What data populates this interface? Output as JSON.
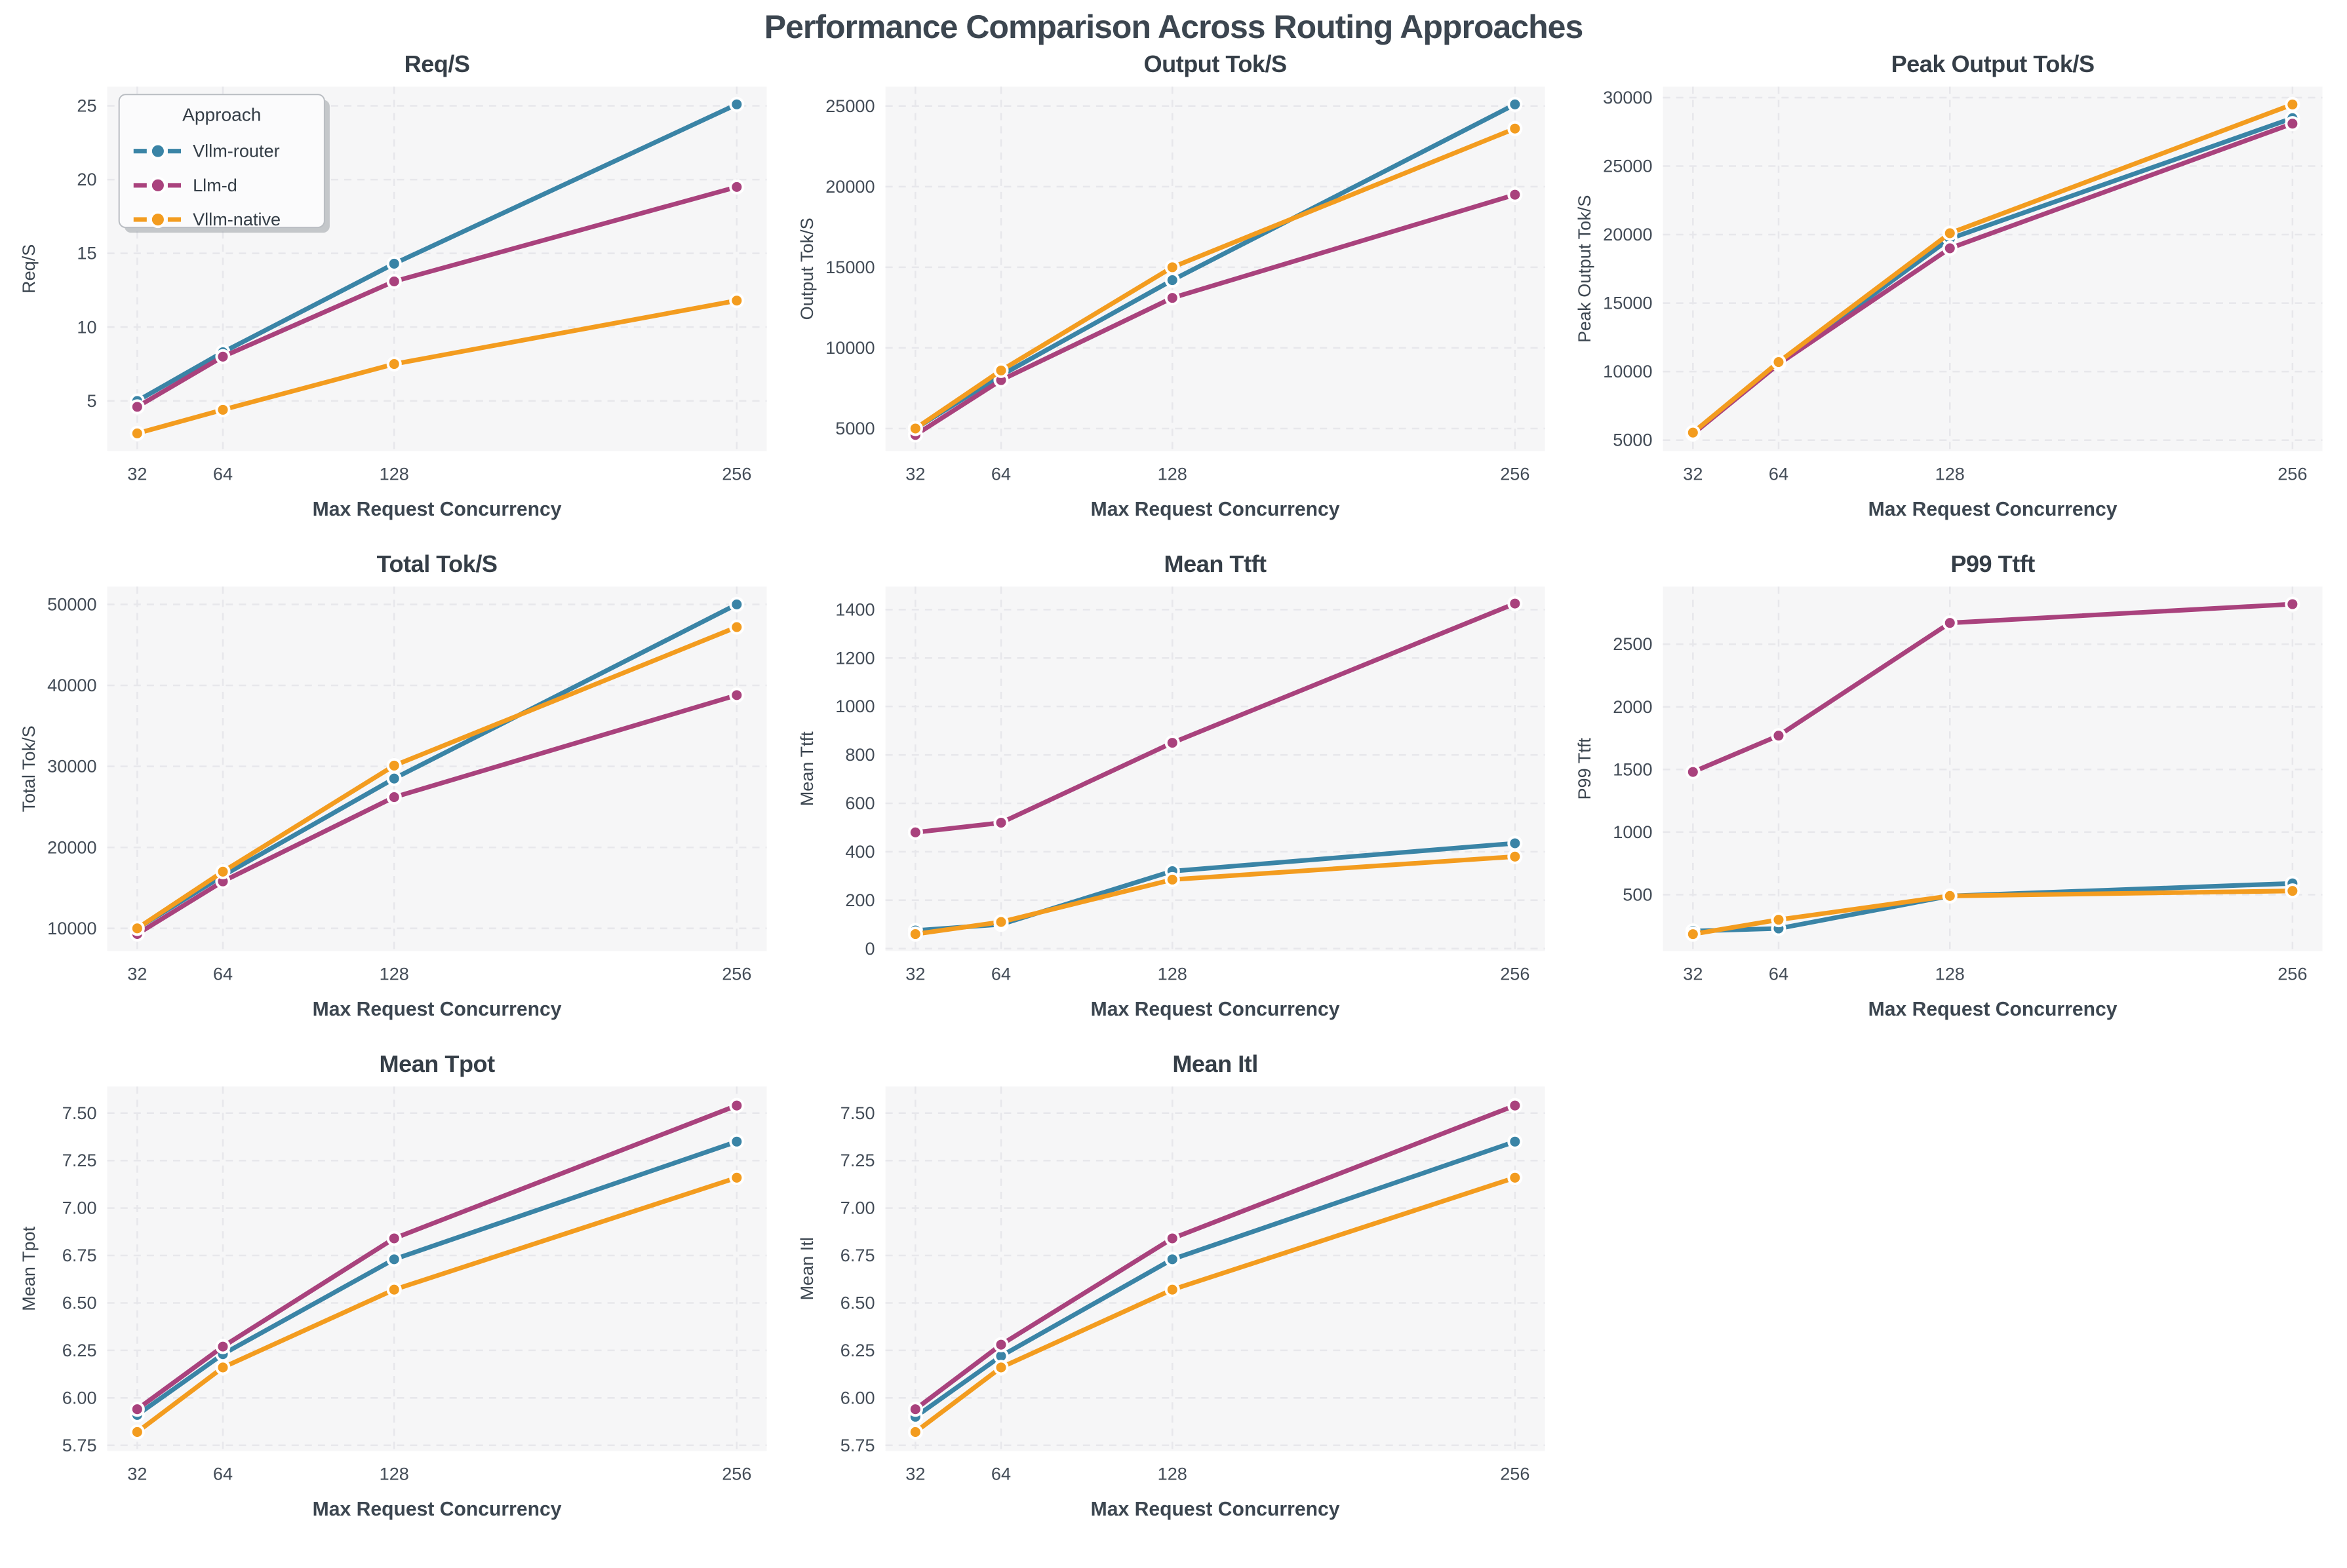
{
  "page_title": "Performance Comparison Across Routing Approaches",
  "legend": {
    "title": "Approach",
    "entries": [
      {
        "label": "Vllm-router",
        "color": "#3a84a6"
      },
      {
        "label": "Llm-d",
        "color": "#a9427d"
      },
      {
        "label": "Vllm-native",
        "color": "#f39c1f"
      }
    ]
  },
  "x_axis": {
    "label": "Max Request Concurrency",
    "tick_values": [
      32,
      64,
      128,
      256
    ],
    "tick_labels": [
      "32",
      "64",
      "128",
      "256"
    ],
    "xlim": [
      20.8,
      267.2
    ]
  },
  "style_colors": {
    "plot_bg": "#f6f6f7",
    "grid": "#e7e7eb",
    "title_text": "#353e47",
    "tick_text": "#434c57",
    "axis_label_text": "#3c4650",
    "marker_edge": "#ffffff",
    "legend_bg": "#fbfbfc",
    "legend_border": "#b9bdc2",
    "legend_shadow": "#9aa0a6"
  },
  "chart_data": [
    {
      "type": "line",
      "title": "Req/S",
      "ylabel": "Req/S",
      "show_legend": true,
      "ylim": [
        1.6,
        26.3
      ],
      "ytick_values": [
        5,
        10,
        15,
        20,
        25
      ],
      "ytick_labels": [
        "5",
        "10",
        "15",
        "20",
        "25"
      ],
      "x": [
        32,
        64,
        128,
        256
      ],
      "series": [
        {
          "name": "Vllm-router",
          "color": "#3a84a6",
          "values": [
            5.0,
            8.3,
            14.3,
            25.1
          ]
        },
        {
          "name": "Llm-d",
          "color": "#a9427d",
          "values": [
            4.6,
            8.0,
            13.1,
            19.5
          ]
        },
        {
          "name": "Vllm-native",
          "color": "#f39c1f",
          "values": [
            2.8,
            4.4,
            7.5,
            11.8
          ]
        }
      ]
    },
    {
      "type": "line",
      "title": "Output Tok/S",
      "ylabel": "Output Tok/S",
      "show_legend": false,
      "ylim": [
        3600,
        26200
      ],
      "ytick_values": [
        5000,
        10000,
        15000,
        20000,
        25000
      ],
      "ytick_labels": [
        "5000",
        "10000",
        "15000",
        "20000",
        "25000"
      ],
      "x": [
        32,
        64,
        128,
        256
      ],
      "series": [
        {
          "name": "Vllm-router",
          "color": "#3a84a6",
          "values": [
            5000,
            8300,
            14200,
            25100
          ]
        },
        {
          "name": "Llm-d",
          "color": "#a9427d",
          "values": [
            4600,
            8000,
            13100,
            19500
          ]
        },
        {
          "name": "Vllm-native",
          "color": "#f39c1f",
          "values": [
            5000,
            8600,
            15000,
            23600
          ]
        }
      ]
    },
    {
      "type": "line",
      "title": "Peak Output Tok/S",
      "ylabel": "Peak Output Tok/S",
      "show_legend": false,
      "ylim": [
        4200,
        30800
      ],
      "ytick_values": [
        5000,
        10000,
        15000,
        20000,
        25000,
        30000
      ],
      "ytick_labels": [
        "5000",
        "10000",
        "15000",
        "20000",
        "25000",
        "30000"
      ],
      "x": [
        32,
        64,
        128,
        256
      ],
      "series": [
        {
          "name": "Vllm-router",
          "color": "#3a84a6",
          "values": [
            5500,
            10600,
            19700,
            28500
          ]
        },
        {
          "name": "Llm-d",
          "color": "#a9427d",
          "values": [
            5450,
            10550,
            19000,
            28100
          ]
        },
        {
          "name": "Vllm-native",
          "color": "#f39c1f",
          "values": [
            5550,
            10700,
            20100,
            29500
          ]
        }
      ]
    },
    {
      "type": "line",
      "title": "Total Tok/S",
      "ylabel": "Total Tok/S",
      "show_legend": false,
      "ylim": [
        7200,
        52200
      ],
      "ytick_values": [
        10000,
        20000,
        30000,
        40000,
        50000
      ],
      "ytick_labels": [
        "10000",
        "20000",
        "30000",
        "40000",
        "50000"
      ],
      "x": [
        32,
        64,
        128,
        256
      ],
      "series": [
        {
          "name": "Vllm-router",
          "color": "#3a84a6",
          "values": [
            10000,
            16500,
            28500,
            50000
          ]
        },
        {
          "name": "Llm-d",
          "color": "#a9427d",
          "values": [
            9300,
            15800,
            26200,
            38800
          ]
        },
        {
          "name": "Vllm-native",
          "color": "#f39c1f",
          "values": [
            10000,
            17000,
            30100,
            47200
          ]
        }
      ]
    },
    {
      "type": "line",
      "title": "Mean Ttft",
      "ylabel": "Mean Ttft",
      "show_legend": false,
      "ylim": [
        -10,
        1495
      ],
      "ytick_values": [
        0,
        200,
        400,
        600,
        800,
        1000,
        1200,
        1400
      ],
      "ytick_labels": [
        "0",
        "200",
        "400",
        "600",
        "800",
        "1000",
        "1200",
        "1400"
      ],
      "x": [
        32,
        64,
        128,
        256
      ],
      "series": [
        {
          "name": "Vllm-router",
          "color": "#3a84a6",
          "values": [
            75,
            100,
            320,
            435
          ]
        },
        {
          "name": "Llm-d",
          "color": "#a9427d",
          "values": [
            480,
            520,
            850,
            1425
          ]
        },
        {
          "name": "Vllm-native",
          "color": "#f39c1f",
          "values": [
            60,
            110,
            285,
            380
          ]
        }
      ]
    },
    {
      "type": "line",
      "title": "P99 Ttft",
      "ylabel": "P99 Ttft",
      "show_legend": false,
      "ylim": [
        50,
        2960
      ],
      "ytick_values": [
        500,
        1000,
        1500,
        2000,
        2500
      ],
      "ytick_labels": [
        "500",
        "1000",
        "1500",
        "2000",
        "2500"
      ],
      "x": [
        32,
        64,
        128,
        256
      ],
      "series": [
        {
          "name": "Vllm-router",
          "color": "#3a84a6",
          "values": [
            210,
            230,
            490,
            590
          ]
        },
        {
          "name": "Llm-d",
          "color": "#a9427d",
          "values": [
            1480,
            1770,
            2670,
            2820
          ]
        },
        {
          "name": "Vllm-native",
          "color": "#f39c1f",
          "values": [
            185,
            300,
            490,
            530
          ]
        }
      ]
    },
    {
      "type": "line",
      "title": "Mean Tpot",
      "ylabel": "Mean Tpot",
      "show_legend": false,
      "ylim": [
        5.72,
        7.64
      ],
      "ytick_values": [
        5.75,
        6.0,
        6.25,
        6.5,
        6.75,
        7.0,
        7.25,
        7.5
      ],
      "ytick_labels": [
        "5.75",
        "6.00",
        "6.25",
        "6.50",
        "6.75",
        "7.00",
        "7.25",
        "7.50"
      ],
      "x": [
        32,
        64,
        128,
        256
      ],
      "series": [
        {
          "name": "Vllm-router",
          "color": "#3a84a6",
          "values": [
            5.91,
            6.23,
            6.73,
            7.35
          ]
        },
        {
          "name": "Llm-d",
          "color": "#a9427d",
          "values": [
            5.94,
            6.27,
            6.84,
            7.54
          ]
        },
        {
          "name": "Vllm-native",
          "color": "#f39c1f",
          "values": [
            5.82,
            6.16,
            6.57,
            7.16
          ]
        }
      ]
    },
    {
      "type": "line",
      "title": "Mean Itl",
      "ylabel": "Mean Itl",
      "show_legend": false,
      "ylim": [
        5.72,
        7.64
      ],
      "ytick_values": [
        5.75,
        6.0,
        6.25,
        6.5,
        6.75,
        7.0,
        7.25,
        7.5
      ],
      "ytick_labels": [
        "5.75",
        "6.00",
        "6.25",
        "6.50",
        "6.75",
        "7.00",
        "7.25",
        "7.50"
      ],
      "x": [
        32,
        64,
        128,
        256
      ],
      "series": [
        {
          "name": "Vllm-router",
          "color": "#3a84a6",
          "values": [
            5.9,
            6.22,
            6.73,
            7.35
          ]
        },
        {
          "name": "Llm-d",
          "color": "#a9427d",
          "values": [
            5.94,
            6.28,
            6.84,
            7.54
          ]
        },
        {
          "name": "Vllm-native",
          "color": "#f39c1f",
          "values": [
            5.82,
            6.16,
            6.57,
            7.16
          ]
        }
      ]
    }
  ]
}
